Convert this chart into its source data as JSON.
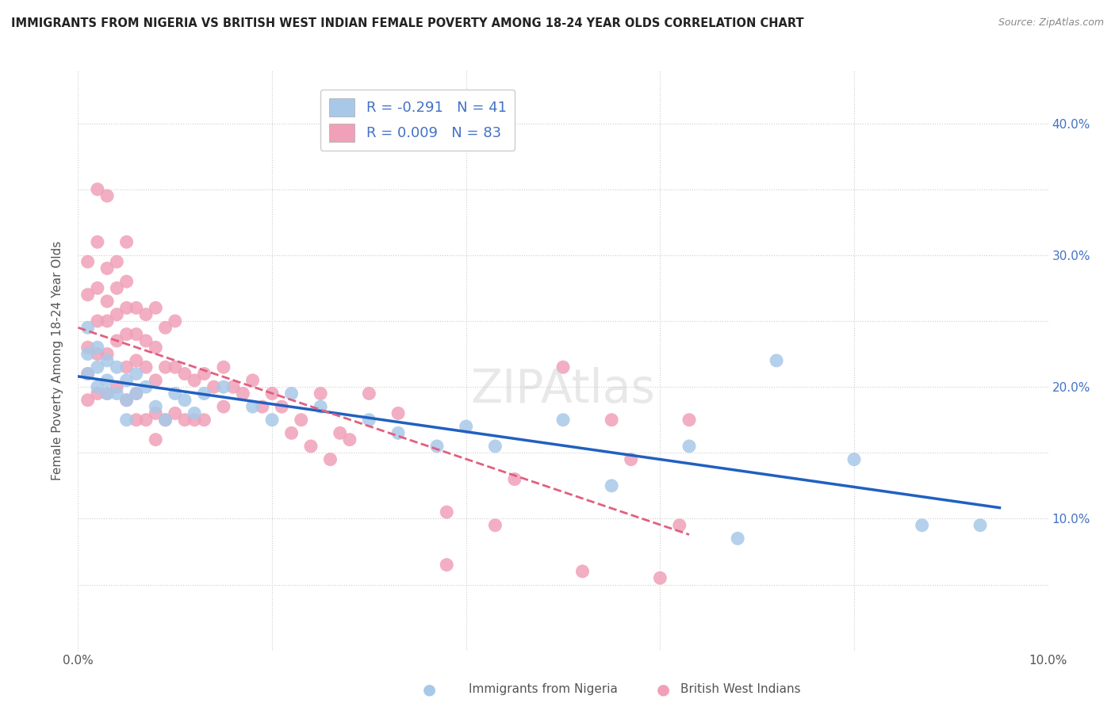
{
  "title": "IMMIGRANTS FROM NIGERIA VS BRITISH WEST INDIAN FEMALE POVERTY AMONG 18-24 YEAR OLDS CORRELATION CHART",
  "source": "Source: ZipAtlas.com",
  "ylabel": "Female Poverty Among 18-24 Year Olds",
  "xlim": [
    0.0,
    0.1
  ],
  "ylim": [
    0.0,
    0.44
  ],
  "R_nigeria": -0.291,
  "N_nigeria": 41,
  "R_bwi": 0.009,
  "N_bwi": 83,
  "nigeria_color": "#a8c8e8",
  "bwi_color": "#f0a0b8",
  "nigeria_line_color": "#2060c0",
  "bwi_line_color": "#e06080",
  "nigeria_x": [
    0.001,
    0.001,
    0.001,
    0.002,
    0.002,
    0.002,
    0.003,
    0.003,
    0.003,
    0.004,
    0.004,
    0.005,
    0.005,
    0.005,
    0.006,
    0.006,
    0.007,
    0.008,
    0.009,
    0.01,
    0.011,
    0.012,
    0.013,
    0.015,
    0.018,
    0.02,
    0.022,
    0.025,
    0.03,
    0.033,
    0.037,
    0.04,
    0.043,
    0.05,
    0.055,
    0.063,
    0.068,
    0.072,
    0.08,
    0.087,
    0.093
  ],
  "nigeria_y": [
    0.245,
    0.225,
    0.21,
    0.23,
    0.215,
    0.2,
    0.22,
    0.205,
    0.195,
    0.215,
    0.195,
    0.205,
    0.19,
    0.175,
    0.21,
    0.195,
    0.2,
    0.185,
    0.175,
    0.195,
    0.19,
    0.18,
    0.195,
    0.2,
    0.185,
    0.175,
    0.195,
    0.185,
    0.175,
    0.165,
    0.155,
    0.17,
    0.155,
    0.175,
    0.125,
    0.155,
    0.085,
    0.22,
    0.145,
    0.095,
    0.095
  ],
  "bwi_x": [
    0.001,
    0.001,
    0.001,
    0.001,
    0.001,
    0.002,
    0.002,
    0.002,
    0.002,
    0.002,
    0.002,
    0.003,
    0.003,
    0.003,
    0.003,
    0.003,
    0.003,
    0.004,
    0.004,
    0.004,
    0.004,
    0.004,
    0.005,
    0.005,
    0.005,
    0.005,
    0.005,
    0.005,
    0.006,
    0.006,
    0.006,
    0.006,
    0.006,
    0.007,
    0.007,
    0.007,
    0.007,
    0.008,
    0.008,
    0.008,
    0.008,
    0.008,
    0.009,
    0.009,
    0.009,
    0.01,
    0.01,
    0.01,
    0.011,
    0.011,
    0.012,
    0.012,
    0.013,
    0.013,
    0.014,
    0.015,
    0.015,
    0.016,
    0.017,
    0.018,
    0.019,
    0.02,
    0.021,
    0.022,
    0.023,
    0.024,
    0.025,
    0.026,
    0.027,
    0.028,
    0.03,
    0.033,
    0.038,
    0.043,
    0.045,
    0.05,
    0.052,
    0.055,
    0.057,
    0.06,
    0.062,
    0.063,
    0.038
  ],
  "bwi_y": [
    0.295,
    0.27,
    0.23,
    0.21,
    0.19,
    0.35,
    0.31,
    0.275,
    0.25,
    0.225,
    0.195,
    0.345,
    0.29,
    0.265,
    0.25,
    0.225,
    0.195,
    0.295,
    0.275,
    0.255,
    0.235,
    0.2,
    0.31,
    0.28,
    0.26,
    0.24,
    0.215,
    0.19,
    0.26,
    0.24,
    0.22,
    0.195,
    0.175,
    0.255,
    0.235,
    0.215,
    0.175,
    0.26,
    0.23,
    0.205,
    0.18,
    0.16,
    0.245,
    0.215,
    0.175,
    0.25,
    0.215,
    0.18,
    0.21,
    0.175,
    0.205,
    0.175,
    0.21,
    0.175,
    0.2,
    0.215,
    0.185,
    0.2,
    0.195,
    0.205,
    0.185,
    0.195,
    0.185,
    0.165,
    0.175,
    0.155,
    0.195,
    0.145,
    0.165,
    0.16,
    0.195,
    0.18,
    0.105,
    0.095,
    0.13,
    0.215,
    0.06,
    0.175,
    0.145,
    0.055,
    0.095,
    0.175,
    0.065
  ]
}
